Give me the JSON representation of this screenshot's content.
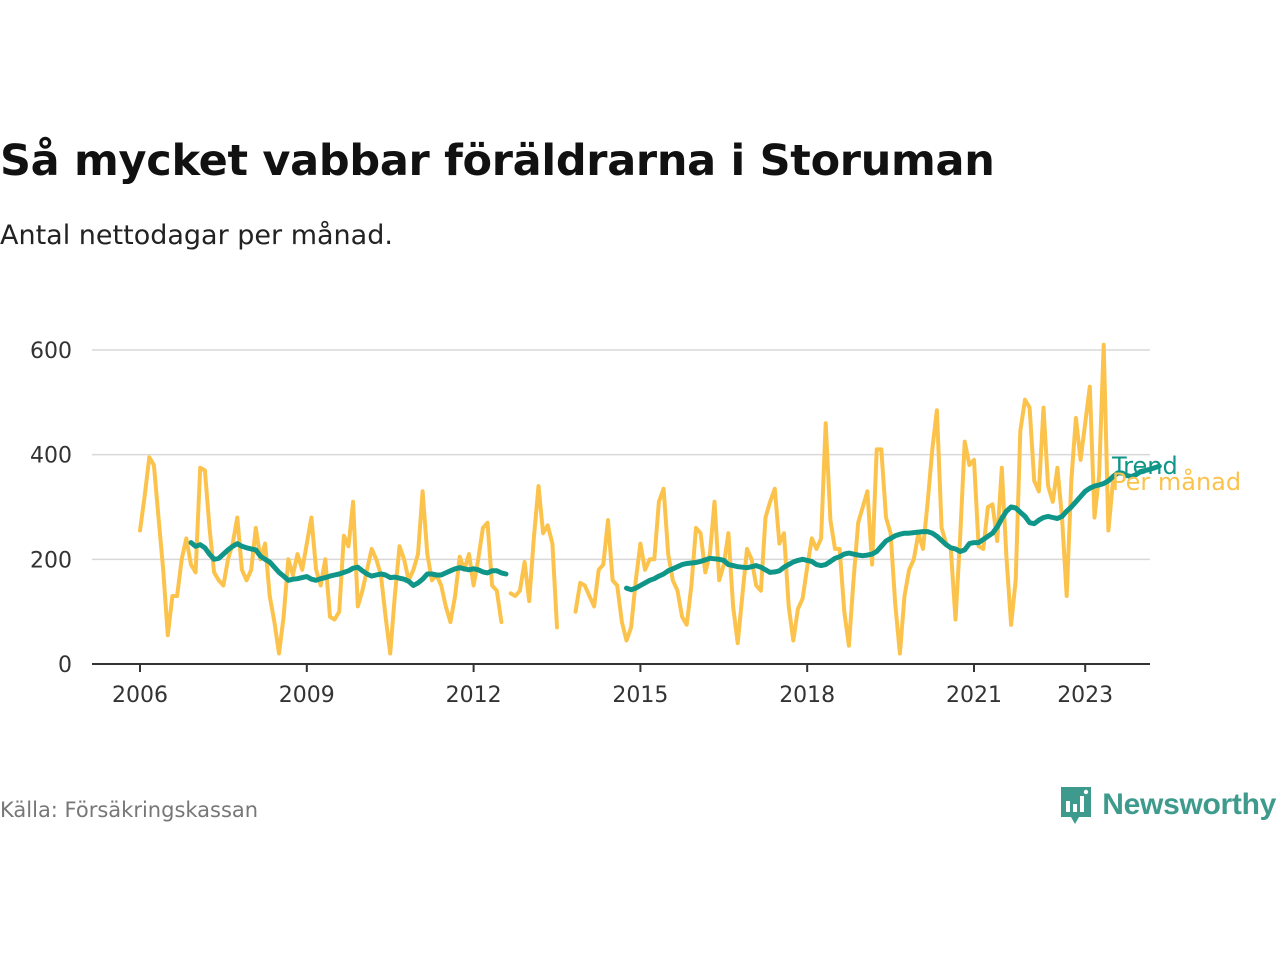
{
  "header": {
    "title": "Så mycket vabbar föräldrarna i Storuman",
    "subtitle": "Antal nettodagar per månad."
  },
  "footer": {
    "source": "Källa: Försäkringskassan",
    "brand": "Newsworthy"
  },
  "icons": {
    "brand_logo": "bar-chart-speech-bubble-icon"
  },
  "colors": {
    "monthly": "#fcc34c",
    "trend": "#0f9688",
    "grid": "#d9d9d9",
    "axis": "#333333",
    "brand": "#3e9a8c"
  },
  "chart_data": {
    "type": "line",
    "title": "Så mycket vabbar föräldrarna i Storuman",
    "subtitle": "Antal nettodagar per månad.",
    "xlabel": "",
    "ylabel": "",
    "x_ticks": [
      "2006",
      "2009",
      "2012",
      "2015",
      "2018",
      "2021",
      "2023"
    ],
    "y_ticks": [
      0,
      200,
      400,
      600
    ],
    "ylim": [
      0,
      600
    ],
    "x_start": "2006-01",
    "x_end": "2023-05",
    "grid": true,
    "legend": "end-of-line labels",
    "series": [
      {
        "name": "Per månad",
        "color": "#fcc34c",
        "values": [
          255,
          320,
          395,
          380,
          280,
          180,
          55,
          130,
          130,
          200,
          240,
          190,
          175,
          375,
          370,
          260,
          175,
          160,
          150,
          200,
          230,
          280,
          180,
          160,
          180,
          260,
          200,
          230,
          130,
          80,
          20,
          90,
          200,
          170,
          210,
          180,
          230,
          280,
          180,
          150,
          200,
          90,
          85,
          100,
          245,
          225,
          310,
          110,
          140,
          180,
          220,
          200,
          170,
          90,
          20,
          130,
          225,
          200,
          160,
          180,
          210,
          330,
          210,
          160,
          170,
          150,
          110,
          80,
          130,
          205,
          180,
          210,
          150,
          200,
          260,
          270,
          150,
          140,
          80,
          null,
          135,
          130,
          140,
          195,
          120,
          240,
          340,
          250,
          265,
          230,
          70,
          null,
          null,
          null,
          100,
          155,
          150,
          130,
          110,
          180,
          190,
          275,
          160,
          150,
          80,
          45,
          70,
          160,
          230,
          180,
          200,
          200,
          310,
          335,
          210,
          160,
          140,
          90,
          75,
          150,
          260,
          250,
          175,
          210,
          310,
          160,
          190,
          250,
          110,
          40,
          130,
          220,
          200,
          150,
          140,
          280,
          310,
          335,
          230,
          250,
          110,
          45,
          105,
          125,
          185,
          240,
          220,
          240,
          460,
          275,
          220,
          220,
          100,
          35,
          160,
          270,
          300,
          330,
          190,
          410,
          410,
          280,
          250,
          115,
          20,
          130,
          180,
          200,
          250,
          220,
          310,
          410,
          485,
          260,
          230,
          220,
          85,
          240,
          425,
          380,
          390,
          225,
          220,
          300,
          305,
          235,
          375,
          205,
          75,
          160,
          445,
          505,
          490,
          350,
          330,
          490,
          340,
          310,
          375,
          280,
          130,
          350,
          470,
          390,
          460,
          530,
          280,
          360,
          610,
          255,
          350
        ]
      },
      {
        "name": "Trend",
        "color": "#0f9688",
        "values": [
          null,
          null,
          null,
          null,
          null,
          null,
          null,
          null,
          null,
          null,
          null,
          232,
          225,
          228,
          222,
          210,
          200,
          202,
          210,
          218,
          225,
          230,
          225,
          222,
          220,
          218,
          206,
          200,
          195,
          185,
          175,
          168,
          160,
          162,
          163,
          165,
          167,
          162,
          160,
          163,
          165,
          168,
          170,
          172,
          175,
          178,
          183,
          185,
          178,
          172,
          168,
          170,
          172,
          170,
          165,
          166,
          164,
          162,
          158,
          150,
          155,
          162,
          172,
          172,
          170,
          170,
          174,
          178,
          182,
          184,
          182,
          180,
          182,
          180,
          176,
          174,
          178,
          178,
          174,
          172,
          null,
          null,
          null,
          null,
          null,
          null,
          null,
          null,
          null,
          null,
          null,
          null,
          null,
          null,
          null,
          null,
          null,
          null,
          null,
          null,
          null,
          null,
          null,
          null,
          null,
          145,
          142,
          145,
          150,
          155,
          160,
          163,
          168,
          172,
          178,
          182,
          186,
          190,
          192,
          193,
          194,
          196,
          199,
          202,
          201,
          200,
          198,
          190,
          188,
          186,
          185,
          184,
          186,
          188,
          185,
          180,
          175,
          176,
          178,
          185,
          190,
          195,
          198,
          200,
          198,
          196,
          190,
          188,
          190,
          196,
          202,
          205,
          210,
          212,
          210,
          208,
          207,
          208,
          210,
          215,
          225,
          235,
          240,
          245,
          248,
          250,
          250,
          251,
          252,
          253,
          253,
          250,
          244,
          236,
          228,
          222,
          220,
          215,
          218,
          230,
          232,
          232,
          238,
          244,
          250,
          262,
          278,
          292,
          300,
          298,
          290,
          282,
          270,
          268,
          275,
          280,
          282,
          280,
          278,
          282,
          292,
          300,
          310,
          320,
          330,
          336,
          340,
          342,
          345,
          350,
          358,
          365,
          365,
          360,
          358,
          362,
          368,
          370,
          372,
          375,
          378
        ]
      }
    ]
  }
}
